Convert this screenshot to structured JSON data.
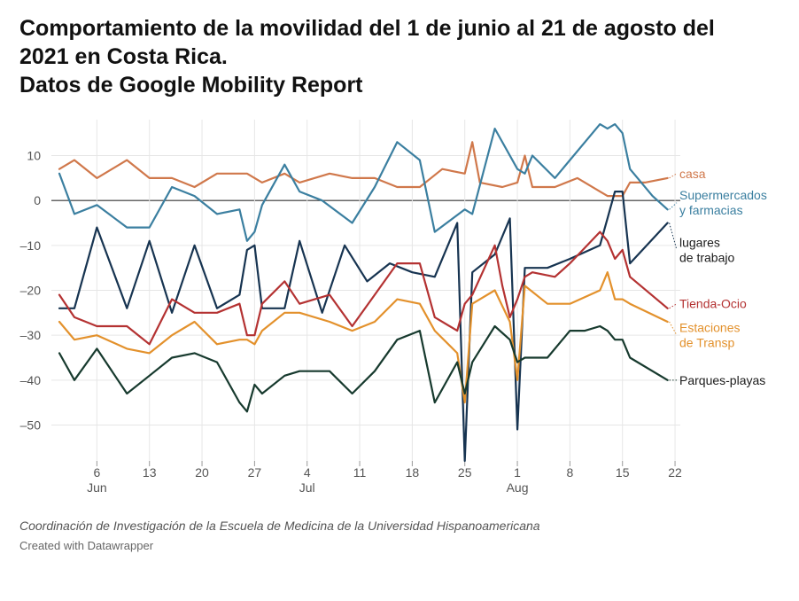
{
  "title_lines": [
    "Comportamiento de la movilidad del 1 de junio al 21 de agosto del",
    "2021 en Costa Rica.",
    "Datos de Google Mobility Report"
  ],
  "notes": "Coordinación de Investigación de la Escuela de Medicina de la Universidad Hispanoamericana",
  "byline": "Created with Datawrapper",
  "chart_data": {
    "type": "line",
    "x_unit": "day index from Jun 1, 2021 (0 = Jun 1, 81 = Aug 21)",
    "ylim": [
      -58,
      18
    ],
    "yticks": [
      10,
      0,
      -10,
      -20,
      -30,
      -40,
      -50
    ],
    "ytick_labels": [
      "10",
      "0",
      "–10",
      "–20",
      "–30",
      "–40",
      "–50"
    ],
    "xticks": [
      {
        "x": 5,
        "label": "6",
        "month": "Jun"
      },
      {
        "x": 12,
        "label": "13",
        "month": ""
      },
      {
        "x": 19,
        "label": "20",
        "month": ""
      },
      {
        "x": 26,
        "label": "27",
        "month": ""
      },
      {
        "x": 33,
        "label": "4",
        "month": "Jul"
      },
      {
        "x": 40,
        "label": "11",
        "month": ""
      },
      {
        "x": 47,
        "label": "18",
        "month": ""
      },
      {
        "x": 54,
        "label": "25",
        "month": ""
      },
      {
        "x": 61,
        "label": "1",
        "month": "Aug"
      },
      {
        "x": 68,
        "label": "8",
        "month": ""
      },
      {
        "x": 75,
        "label": "15",
        "month": ""
      },
      {
        "x": 82,
        "label": "22",
        "month": ""
      }
    ],
    "grid": true,
    "series": [
      {
        "name": "casa",
        "color": "#d0784b",
        "label_y": 6,
        "points": [
          [
            0,
            7
          ],
          [
            2,
            9
          ],
          [
            5,
            5
          ],
          [
            9,
            9
          ],
          [
            12,
            5
          ],
          [
            15,
            5
          ],
          [
            18,
            3
          ],
          [
            21,
            6
          ],
          [
            25,
            6
          ],
          [
            27,
            4
          ],
          [
            30,
            6
          ],
          [
            32,
            4
          ],
          [
            36,
            6
          ],
          [
            39,
            5
          ],
          [
            42,
            5
          ],
          [
            45,
            3
          ],
          [
            48,
            3
          ],
          [
            51,
            7
          ],
          [
            54,
            6
          ],
          [
            55,
            13
          ],
          [
            56,
            4
          ],
          [
            59,
            3
          ],
          [
            61,
            4
          ],
          [
            62,
            10
          ],
          [
            63,
            3
          ],
          [
            66,
            3
          ],
          [
            69,
            5
          ],
          [
            72,
            2
          ],
          [
            73,
            1
          ],
          [
            75,
            1
          ],
          [
            76,
            4
          ],
          [
            78,
            4
          ],
          [
            81,
            5
          ]
        ]
      },
      {
        "name": "Supermercados y farmacias",
        "color": "#3b7fa0",
        "label_y": -0.5,
        "points": [
          [
            0,
            6
          ],
          [
            2,
            -3
          ],
          [
            5,
            -1
          ],
          [
            9,
            -6
          ],
          [
            12,
            -6
          ],
          [
            15,
            3
          ],
          [
            18,
            1
          ],
          [
            21,
            -3
          ],
          [
            24,
            -2
          ],
          [
            25,
            -9
          ],
          [
            26,
            -7
          ],
          [
            27,
            -1
          ],
          [
            30,
            8
          ],
          [
            32,
            2
          ],
          [
            35,
            0
          ],
          [
            39,
            -5
          ],
          [
            42,
            3
          ],
          [
            45,
            13
          ],
          [
            48,
            9
          ],
          [
            50,
            -7
          ],
          [
            54,
            -2
          ],
          [
            55,
            -3
          ],
          [
            58,
            16
          ],
          [
            61,
            7
          ],
          [
            62,
            6
          ],
          [
            63,
            10
          ],
          [
            66,
            5
          ],
          [
            72,
            17
          ],
          [
            73,
            16
          ],
          [
            74,
            17
          ],
          [
            75,
            15
          ],
          [
            76,
            7
          ],
          [
            79,
            1
          ],
          [
            81,
            -2
          ]
        ]
      },
      {
        "name": "lugares de trabajo",
        "color": "#173451",
        "label_y": -11,
        "points": [
          [
            0,
            -24
          ],
          [
            2,
            -24
          ],
          [
            5,
            -6
          ],
          [
            9,
            -24
          ],
          [
            12,
            -9
          ],
          [
            15,
            -25
          ],
          [
            18,
            -10
          ],
          [
            21,
            -24
          ],
          [
            24,
            -21
          ],
          [
            25,
            -11
          ],
          [
            26,
            -10
          ],
          [
            27,
            -24
          ],
          [
            30,
            -24
          ],
          [
            32,
            -9
          ],
          [
            35,
            -25
          ],
          [
            38,
            -10
          ],
          [
            41,
            -18
          ],
          [
            44,
            -14
          ],
          [
            47,
            -16
          ],
          [
            50,
            -17
          ],
          [
            53,
            -5
          ],
          [
            54,
            -58
          ],
          [
            55,
            -16
          ],
          [
            58,
            -12
          ],
          [
            60,
            -4
          ],
          [
            61,
            -51
          ],
          [
            62,
            -15
          ],
          [
            65,
            -15
          ],
          [
            68,
            -13
          ],
          [
            72,
            -10
          ],
          [
            73,
            -4
          ],
          [
            74,
            2
          ],
          [
            75,
            2
          ],
          [
            76,
            -14
          ],
          [
            81,
            -5
          ]
        ]
      },
      {
        "name": "Tienda-Ocio",
        "color": "#b43232",
        "label_y": -23,
        "points": [
          [
            0,
            -21
          ],
          [
            2,
            -26
          ],
          [
            5,
            -28
          ],
          [
            9,
            -28
          ],
          [
            12,
            -32
          ],
          [
            15,
            -22
          ],
          [
            18,
            -25
          ],
          [
            21,
            -25
          ],
          [
            24,
            -23
          ],
          [
            25,
            -30
          ],
          [
            26,
            -30
          ],
          [
            27,
            -23
          ],
          [
            30,
            -18
          ],
          [
            32,
            -23
          ],
          [
            36,
            -21
          ],
          [
            39,
            -28
          ],
          [
            42,
            -21
          ],
          [
            45,
            -14
          ],
          [
            48,
            -14
          ],
          [
            50,
            -26
          ],
          [
            53,
            -29
          ],
          [
            54,
            -23
          ],
          [
            55,
            -21
          ],
          [
            58,
            -10
          ],
          [
            59,
            -19
          ],
          [
            60,
            -26
          ],
          [
            61,
            -22
          ],
          [
            62,
            -17
          ],
          [
            63,
            -16
          ],
          [
            66,
            -17
          ],
          [
            68,
            -14
          ],
          [
            72,
            -7
          ],
          [
            73,
            -9
          ],
          [
            74,
            -13
          ],
          [
            75,
            -11
          ],
          [
            76,
            -17
          ],
          [
            81,
            -24
          ]
        ]
      },
      {
        "name": "Estaciones de Transp",
        "color": "#e3912c",
        "label_y": -30,
        "points": [
          [
            0,
            -27
          ],
          [
            2,
            -31
          ],
          [
            5,
            -30
          ],
          [
            9,
            -33
          ],
          [
            12,
            -34
          ],
          [
            15,
            -30
          ],
          [
            18,
            -27
          ],
          [
            21,
            -32
          ],
          [
            24,
            -31
          ],
          [
            25,
            -31
          ],
          [
            26,
            -32
          ],
          [
            27,
            -29
          ],
          [
            30,
            -25
          ],
          [
            32,
            -25
          ],
          [
            36,
            -27
          ],
          [
            39,
            -29
          ],
          [
            42,
            -27
          ],
          [
            45,
            -22
          ],
          [
            48,
            -23
          ],
          [
            50,
            -29
          ],
          [
            53,
            -34
          ],
          [
            54,
            -45
          ],
          [
            55,
            -23
          ],
          [
            58,
            -20
          ],
          [
            60,
            -27
          ],
          [
            61,
            -40
          ],
          [
            62,
            -19
          ],
          [
            65,
            -23
          ],
          [
            68,
            -23
          ],
          [
            72,
            -20
          ],
          [
            73,
            -16
          ],
          [
            74,
            -22
          ],
          [
            75,
            -22
          ],
          [
            76,
            -23
          ],
          [
            81,
            -27
          ]
        ]
      },
      {
        "name": "Parques-playas",
        "color": "#173a2e",
        "label_y": -40,
        "points": [
          [
            0,
            -34
          ],
          [
            2,
            -40
          ],
          [
            5,
            -33
          ],
          [
            9,
            -43
          ],
          [
            12,
            -39
          ],
          [
            15,
            -35
          ],
          [
            18,
            -34
          ],
          [
            21,
            -36
          ],
          [
            24,
            -45
          ],
          [
            25,
            -47
          ],
          [
            26,
            -41
          ],
          [
            27,
            -43
          ],
          [
            30,
            -39
          ],
          [
            32,
            -38
          ],
          [
            36,
            -38
          ],
          [
            39,
            -43
          ],
          [
            42,
            -38
          ],
          [
            45,
            -31
          ],
          [
            48,
            -29
          ],
          [
            50,
            -45
          ],
          [
            53,
            -36
          ],
          [
            54,
            -43
          ],
          [
            55,
            -36
          ],
          [
            58,
            -28
          ],
          [
            60,
            -31
          ],
          [
            61,
            -36
          ],
          [
            62,
            -35
          ],
          [
            65,
            -35
          ],
          [
            68,
            -29
          ],
          [
            70,
            -29
          ],
          [
            72,
            -28
          ],
          [
            73,
            -29
          ],
          [
            74,
            -31
          ],
          [
            75,
            -31
          ],
          [
            76,
            -35
          ],
          [
            81,
            -40
          ]
        ]
      }
    ]
  }
}
